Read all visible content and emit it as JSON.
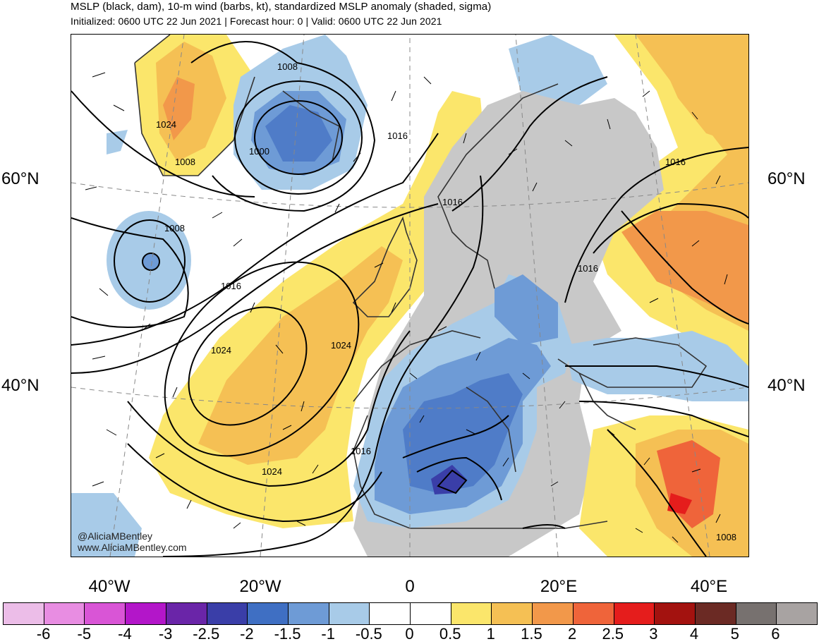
{
  "header": {
    "title": "MSLP (black, dam), 10-m wind (barbs, kt), standardized MSLP anomaly (shaded, sigma)",
    "subtitle": "Initialized: 0600 UTC 22 Jun 2021 | Forecast hour: 0 | Valid: 0600 UTC 22 Jun 2021"
  },
  "map": {
    "lat_labels": [
      "60°N",
      "40°N"
    ],
    "lon_labels": [
      "40°W",
      "20°W",
      "0",
      "20°E",
      "40°E"
    ],
    "isobar_labels": [
      "1008",
      "1024",
      "1008",
      "1000",
      "1016",
      "1016",
      "1008",
      "1016",
      "1016",
      "1024",
      "1024",
      "1016",
      "1024",
      "1016",
      "1008"
    ],
    "credit_handle": "@AliciaMBentley",
    "credit_site": "www.AliciaMBentley.com"
  },
  "colorbar": {
    "colors": [
      "#ecbde8",
      "#e88de2",
      "#d955d6",
      "#b316c9",
      "#6a25a8",
      "#3a3ea8",
      "#3f6fc3",
      "#6e9bd6",
      "#a8cbe8",
      "#ffffff",
      "#ffffff",
      "#fbe66b",
      "#f5c054",
      "#f2984a",
      "#ef643a",
      "#e51d1c",
      "#a3120f",
      "#6b2a24",
      "#77716f",
      "#a8a3a2"
    ],
    "labels": [
      "-6",
      "-5",
      "-4",
      "-3",
      "-2.5",
      "-2",
      "-1.5",
      "-1",
      "-0.5",
      "0",
      "0.5",
      "1",
      "1.5",
      "2",
      "2.5",
      "3",
      "4",
      "5",
      "6"
    ]
  }
}
